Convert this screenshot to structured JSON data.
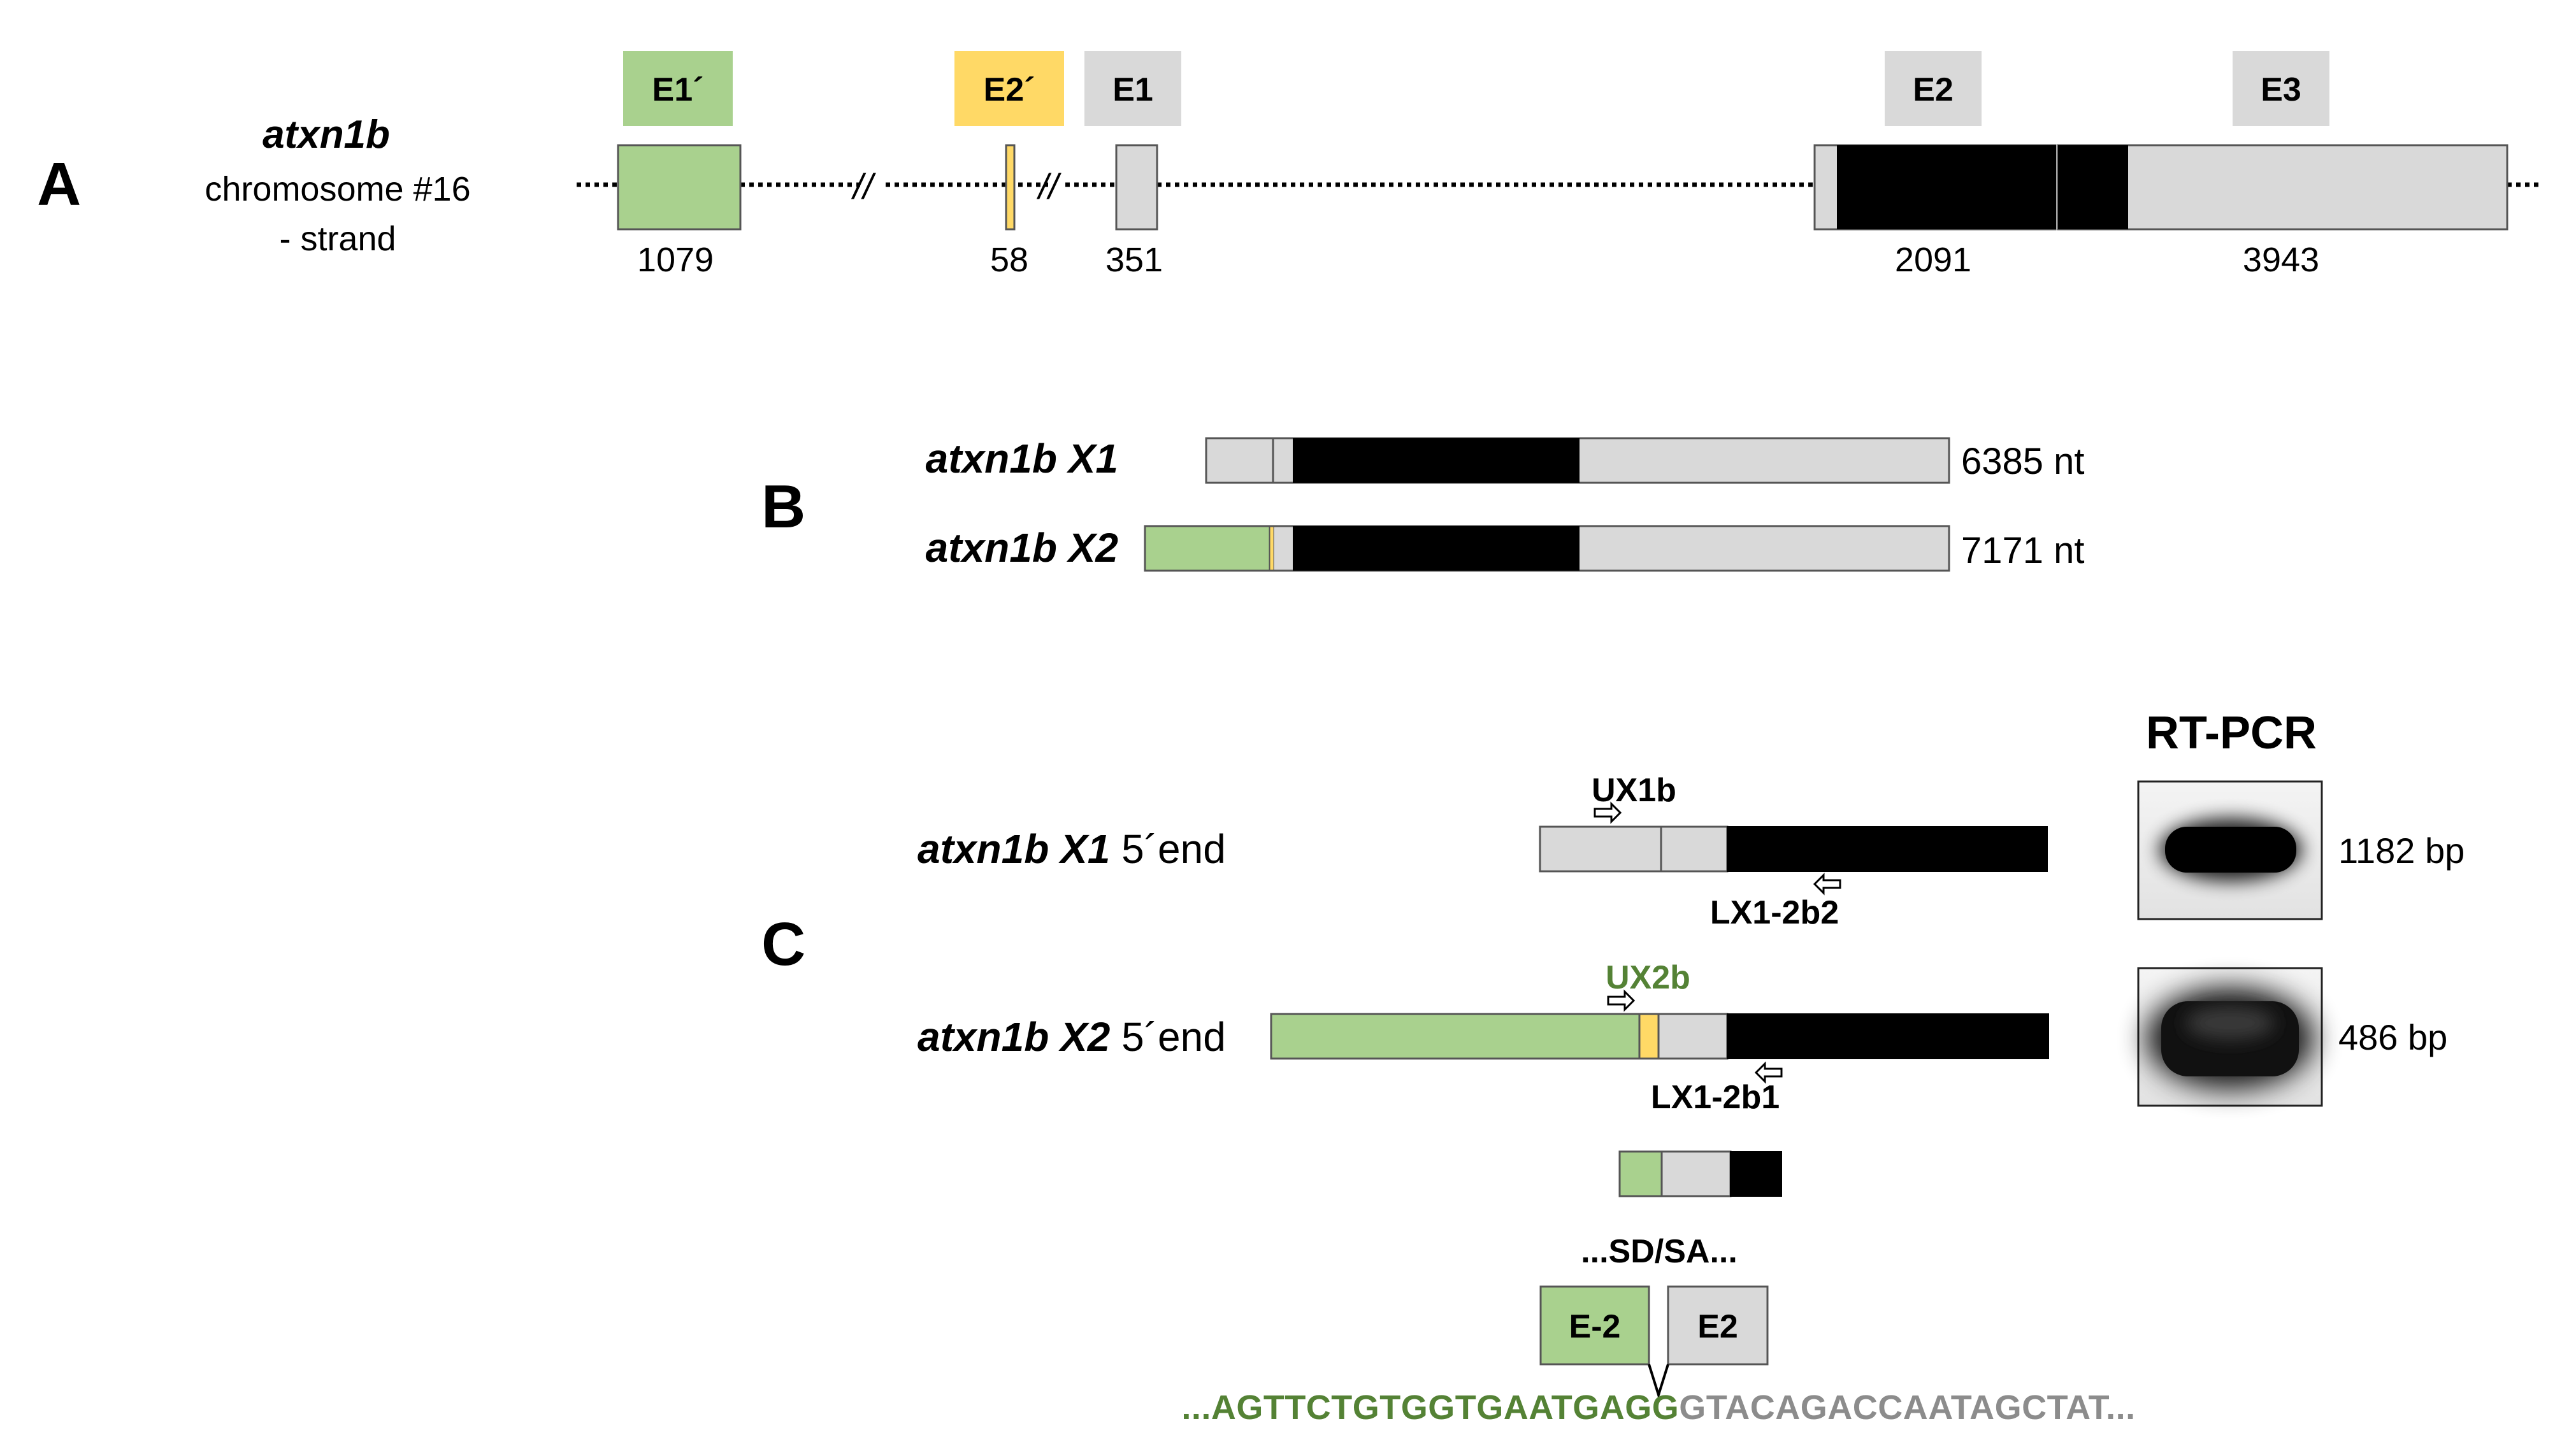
{
  "panel_a": {
    "letter": "A",
    "gene": "atxn1b",
    "chromosome": "chromosome #16",
    "strand": "- strand",
    "exons": [
      {
        "label": "E1´",
        "length": "1079",
        "color": "#a9d18e"
      },
      {
        "label": "E2´",
        "length": "58",
        "color": "#ffd966"
      },
      {
        "label": "E1",
        "length": "351",
        "color": "#d9d9d9"
      },
      {
        "label": "E2",
        "length": "2091",
        "color": "#d9d9d9"
      },
      {
        "label": "E3",
        "length": "3943",
        "color": "#d9d9d9"
      }
    ]
  },
  "panel_b": {
    "letter": "B",
    "transcripts": [
      {
        "name": "atxn1b X1",
        "length": "6385 nt"
      },
      {
        "name": "atxn1b X2",
        "length": "7171 nt"
      }
    ]
  },
  "panel_c": {
    "letter": "C",
    "rt_pcr_title": "RT-PCR",
    "rows": [
      {
        "name": "atxn1b X1",
        "suffix": " 5´end",
        "forward_primer": "UX1b",
        "reverse_primer": "LX1-2b2",
        "band": "1182 bp"
      },
      {
        "name": "atxn1b X2",
        "suffix": " 5´end",
        "forward_primer": "UX2b",
        "reverse_primer": "LX1-2b1",
        "band": "486 bp"
      }
    ],
    "splice_label": "...SD/SA...",
    "junction_left": "E-2",
    "junction_right": "E2",
    "sequence_left": "...AGTTCTGTGGTGAATGAGG",
    "sequence_right": "GTACAGACCAATAGCTAT...",
    "colors": {
      "sequence_left": "#548235",
      "sequence_right": "#8c8c8c",
      "primer_ux2b": "#548235"
    }
  }
}
